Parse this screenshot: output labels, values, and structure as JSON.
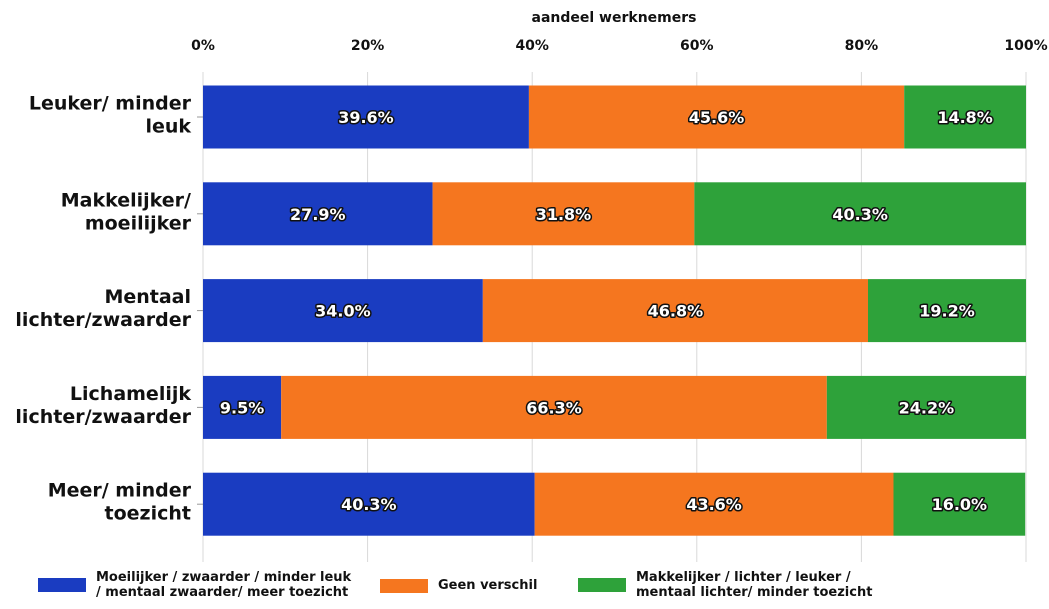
{
  "chart_data": {
    "type": "bar",
    "orientation": "horizontal",
    "stacked": true,
    "xlabel": "aandeel werknemers",
    "xlim": [
      0,
      100
    ],
    "ticks": [
      "0%",
      "20%",
      "40%",
      "60%",
      "80%",
      "100%"
    ],
    "tick_values": [
      0,
      20,
      40,
      60,
      80,
      100
    ],
    "categories": [
      [
        "Leuker/ minder",
        "leuk"
      ],
      [
        "Makkelijker/",
        "moeilijker"
      ],
      [
        "Mentaal",
        "lichter/zwaarder"
      ],
      [
        "Lichamelijk",
        "lichter/zwaarder"
      ],
      [
        "Meer/ minder",
        "toezicht"
      ]
    ],
    "series": [
      {
        "name": "Moeilijker / zwaarder / minder leuk / mentaal zwaarder/ meer toezicht",
        "legend_lines": [
          "Moeilijker / zwaarder / minder leuk",
          "/ mentaal zwaarder/ meer toezicht"
        ],
        "color": "#1a3cc1",
        "values": [
          39.6,
          27.9,
          34.0,
          9.5,
          40.3
        ],
        "labels": [
          "39.6%",
          "27.9%",
          "34.0%",
          "9.5%",
          "40.3%"
        ]
      },
      {
        "name": "Geen verschil",
        "legend_lines": [
          "Geen verschil"
        ],
        "color": "#f5761f",
        "values": [
          45.6,
          31.8,
          46.8,
          66.3,
          43.6
        ],
        "labels": [
          "45.6%",
          "31.8%",
          "46.8%",
          "66.3%",
          "43.6%"
        ]
      },
      {
        "name": "Makkelijker / lichter / leuker / mentaal lichter/ minder toezicht",
        "legend_lines": [
          "Makkelijker / lichter / leuker /",
          "mentaal lichter/ minder toezicht"
        ],
        "color": "#2ea23a",
        "values": [
          14.8,
          40.3,
          19.2,
          24.2,
          16.0
        ],
        "labels": [
          "14.8%",
          "40.3%",
          "19.2%",
          "24.2%",
          "16.0%"
        ]
      }
    ],
    "grid": true,
    "legend_position": "bottom"
  }
}
